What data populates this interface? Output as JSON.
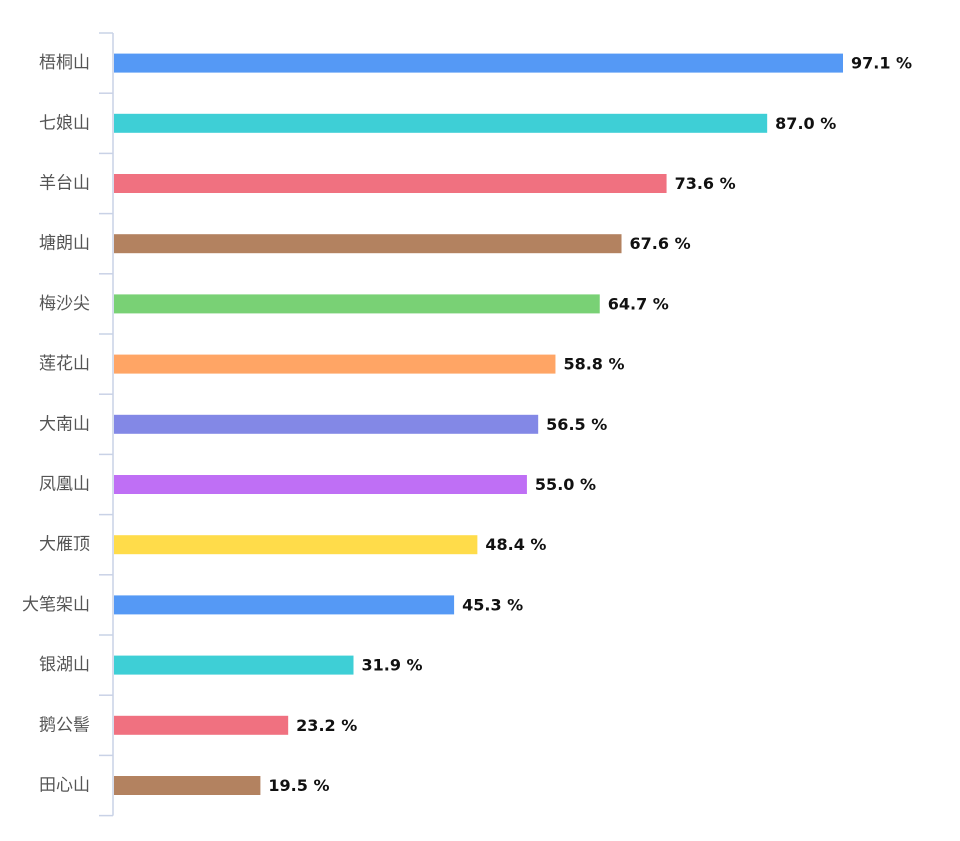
{
  "chart_data": {
    "type": "bar",
    "orientation": "horizontal",
    "categories": [
      "梧桐山",
      "七娘山",
      "羊台山",
      "塘朗山",
      "梅沙尖",
      "莲花山",
      "大南山",
      "凤凰山",
      "大雁顶",
      "大笔架山",
      "银湖山",
      "鹅公髻",
      "田心山"
    ],
    "values": [
      97.1,
      87.0,
      73.6,
      67.6,
      64.7,
      58.8,
      56.5,
      55.0,
      48.4,
      45.3,
      31.9,
      23.2,
      19.5
    ],
    "value_labels": [
      "97.1 %",
      "87.0 %",
      "73.6 %",
      "67.6 %",
      "64.7 %",
      "58.8 %",
      "56.5 %",
      "55.0 %",
      "48.4 %",
      "45.3 %",
      "31.9 %",
      "23.2 %",
      "19.5 %"
    ],
    "colors": [
      "#5599f5",
      "#3ecfd6",
      "#f07180",
      "#b38260",
      "#79d175",
      "#ffa565",
      "#8388e6",
      "#bf6ff5",
      "#ffdc4a",
      "#5599f5",
      "#3ecfd6",
      "#f07180",
      "#b38260"
    ],
    "xlim": [
      0,
      100
    ],
    "grid": false,
    "legend": "none"
  }
}
